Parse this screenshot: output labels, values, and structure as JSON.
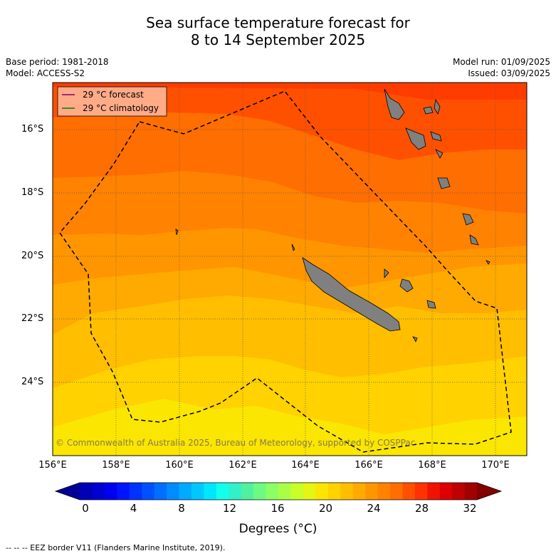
{
  "header": {
    "title_line1": "Sea surface temperature forecast for",
    "title_line2": "8 to 14 September 2025",
    "base_period": "Base period: 1981-2018",
    "model": "Model: ACCESS-S2",
    "model_run": "Model run: 01/09/2025",
    "issued": "Issued: 03/09/2025"
  },
  "map": {
    "legend": {
      "forecast": "29 °C  forecast",
      "climatology": "29 °C  climatology",
      "forecast_color": "#800080",
      "climatology_color": "#008000"
    },
    "copyright": "© Commonwealth of Australia 2025, Bureau of Meteorology, supported by COSPPac",
    "lat_labels": [
      "16°S",
      "18°S",
      "20°S",
      "22°S",
      "24°S"
    ],
    "lon_labels": [
      "156°E",
      "158°E",
      "160°E",
      "162°E",
      "164°E",
      "166°E",
      "168°E",
      "170°E"
    ],
    "land_color": "#808080",
    "eez_line": "dashed black"
  },
  "colorbar": {
    "ticks": [
      "0",
      "4",
      "8",
      "12",
      "16",
      "20",
      "24",
      "28",
      "32"
    ],
    "title": "Degrees (°C)",
    "colors": [
      "#000096",
      "#0000b4",
      "#0000d2",
      "#0000f0",
      "#0014ff",
      "#0032ff",
      "#0050ff",
      "#006eff",
      "#008cff",
      "#00aaff",
      "#00c8ff",
      "#00e6ff",
      "#14ffeb",
      "#32f0c8",
      "#50f0a0",
      "#6efa82",
      "#8cff64",
      "#aaff46",
      "#c8ff28",
      "#e6f514",
      "#fae600",
      "#ffd200",
      "#ffbe00",
      "#ffaa00",
      "#ff9600",
      "#ff8200",
      "#ff6e00",
      "#ff5000",
      "#ff3200",
      "#f01400",
      "#dc0000",
      "#be0000",
      "#a00000",
      "#820000"
    ]
  },
  "footnote": "--  --  -- EEZ border V11 (Flanders Marine Institute, 2019)."
}
